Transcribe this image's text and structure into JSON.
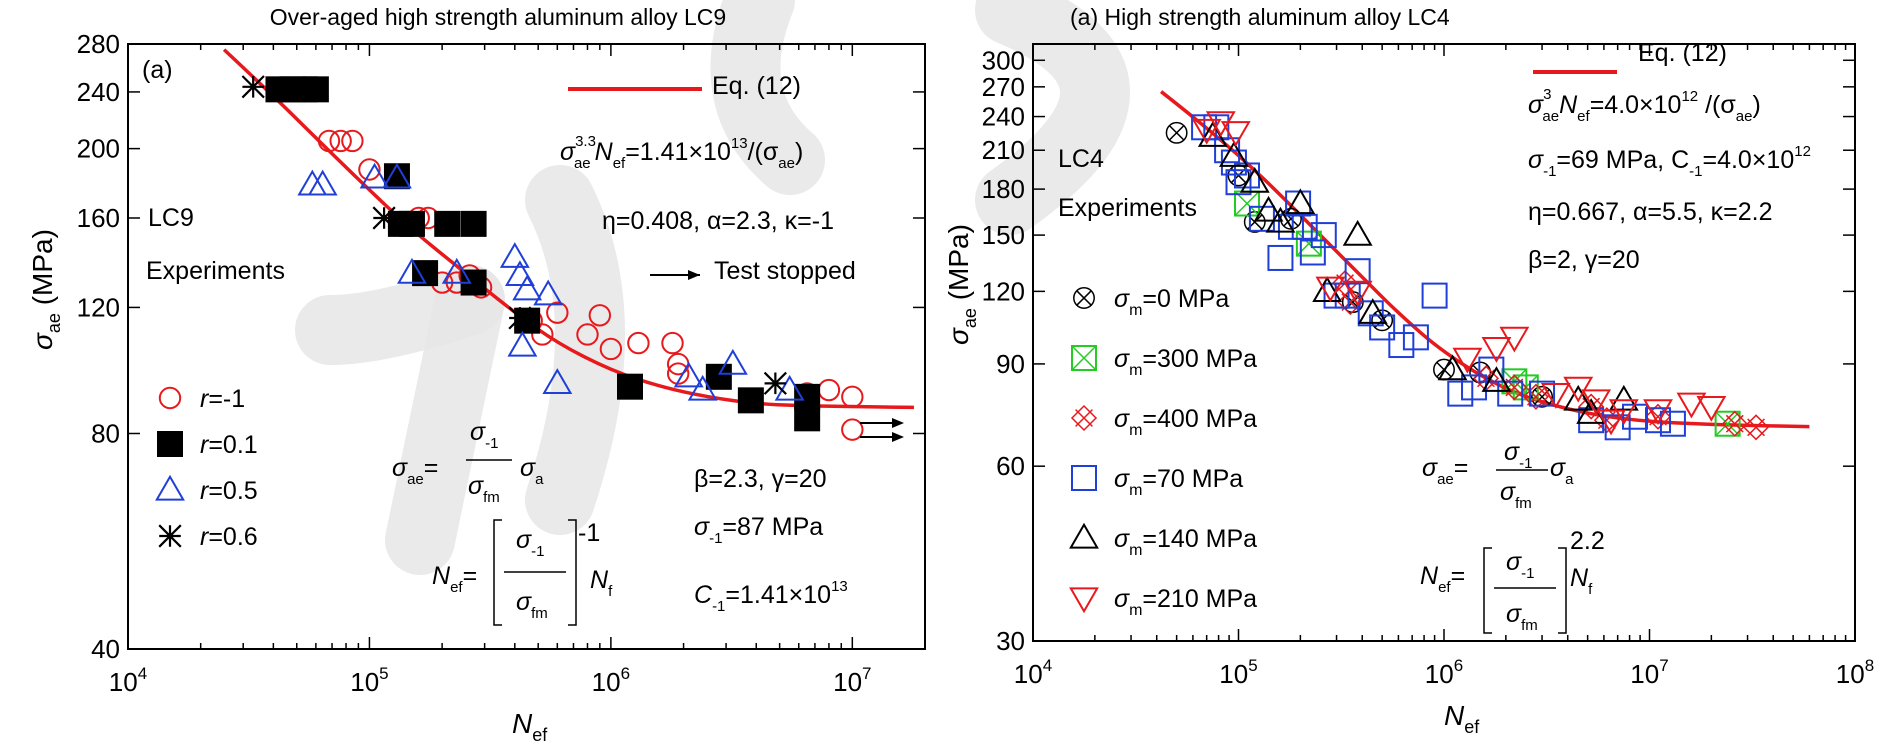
{
  "chart_data": [
    {
      "type": "scatter",
      "title": "Over-aged high strength aluminum alloy LC9",
      "panel_label": "(a)",
      "xlabel": "N_ef",
      "ylabel": "σ_ae (MPa)",
      "xscale": "log",
      "yscale": "log",
      "xlim": [
        10000,
        20000000
      ],
      "ylim": [
        40,
        280
      ],
      "xticks": [
        10000,
        100000,
        1000000,
        10000000
      ],
      "yticks": [
        40,
        80,
        120,
        160,
        200,
        240,
        280
      ],
      "material_label": "LC9",
      "experiments_label": "Experiments",
      "colors": {
        "fit": "#e8191c",
        "r_-1": "#e8191c",
        "r_0.1": "#000000",
        "r_0.5": "#1f3fd8",
        "r_0.6": "#000000"
      },
      "fit": {
        "name": "Eq. (12)",
        "x": [
          25000,
          40000,
          60000,
          100000,
          150000,
          250000,
          400000,
          600000,
          1000000,
          1600000,
          2500000,
          4000000,
          6000000,
          10000000,
          18000000
        ],
        "y": [
          275,
          237,
          207,
          175,
          154,
          134,
          118,
          107,
          98,
          93,
          90,
          88,
          87.5,
          87.2,
          87
        ]
      },
      "series": [
        {
          "name": "r=-1",
          "label_var": "r",
          "label_val": "=-1",
          "marker": "circle",
          "points": [
            [
              68000,
              205
            ],
            [
              76000,
              205
            ],
            [
              85000,
              205
            ],
            [
              100000,
              187
            ],
            [
              160000,
              160
            ],
            [
              175000,
              160
            ],
            [
              200000,
              130
            ],
            [
              230000,
              130
            ],
            [
              260000,
              133
            ],
            [
              290000,
              128
            ],
            [
              470000,
              115
            ],
            [
              520000,
              110
            ],
            [
              600000,
              118
            ],
            [
              800000,
              110
            ],
            [
              900000,
              117
            ],
            [
              1000000,
              105
            ],
            [
              1300000,
              107
            ],
            [
              1800000,
              107
            ],
            [
              1900000,
              97
            ],
            [
              1900000,
              100
            ],
            [
              6500000,
              91
            ],
            [
              6500000,
              87
            ],
            [
              8000000,
              92
            ],
            [
              10000000,
              90
            ],
            [
              10000000,
              81
            ]
          ]
        },
        {
          "name": "r=0.1",
          "label_var": "r",
          "label_val": "=0.1",
          "marker": "square",
          "points": [
            [
              42000,
              242
            ],
            [
              48000,
              242
            ],
            [
              54000,
              242
            ],
            [
              60000,
              242
            ],
            [
              130000,
              183
            ],
            [
              135000,
              157
            ],
            [
              150000,
              157
            ],
            [
              170000,
              134
            ],
            [
              210000,
              157
            ],
            [
              270000,
              157
            ],
            [
              270000,
              130
            ],
            [
              450000,
              115
            ],
            [
              1200000,
              93
            ],
            [
              2800000,
              96
            ],
            [
              3800000,
              89
            ],
            [
              6500000,
              84
            ],
            [
              6500000,
              90
            ]
          ]
        },
        {
          "name": "r=0.5",
          "label_var": "r",
          "label_val": "=0.5",
          "marker": "triangle",
          "points": [
            [
              58000,
              178
            ],
            [
              64000,
              178
            ],
            [
              105000,
              182
            ],
            [
              130000,
              182
            ],
            [
              150000,
              134
            ],
            [
              230000,
              134
            ],
            [
              400000,
              141
            ],
            [
              420000,
              133
            ],
            [
              430000,
              106
            ],
            [
              450000,
              127
            ],
            [
              550000,
              125
            ],
            [
              600000,
              94
            ],
            [
              2100000,
              96
            ],
            [
              2400000,
              92
            ],
            [
              3200000,
              100
            ],
            [
              5500000,
              92
            ]
          ]
        },
        {
          "name": "r=0.6",
          "label_var": "r",
          "label_val": "=0.6",
          "marker": "asterisk",
          "points": [
            [
              33000,
              244
            ],
            [
              115000,
              160
            ],
            [
              420000,
              116
            ],
            [
              4800000,
              94
            ]
          ]
        }
      ],
      "annotations": {
        "eq_main_lhs": "σ",
        "eq_main_sup": "3.3",
        "eq_main_sub": "ae",
        "eq_main_n": "N",
        "eq_main_nsub": "ef",
        "eq_main_rhs": "=1.41×10",
        "eq_main_rhs_exp": "13",
        "eq_main_tail": "/(σ",
        "eq_main_tail_sub": "ae",
        "eq_main_close": ")",
        "params1": "η=0.408, α=2.3, κ=-1",
        "test_stopped": "Test stopped",
        "params2": "β=2.3, γ=20",
        "sigma_m1": "σ",
        "sigma_m1_sub": "-1",
        "sigma_m1_val": "=87 MPa",
        "c_m1": "C",
        "c_m1_sub": "-1",
        "c_m1_val": "=1.41×10",
        "c_m1_exp": "13",
        "f_sae": "σ",
        "f_sae_sub": "ae",
        "f_eq": "=",
        "f_num": "σ",
        "f_num_sub": "-1",
        "f_den": "σ",
        "f_den_sub": "fm",
        "f_a": "σ",
        "f_a_sub": "a",
        "f_nef": "N",
        "f_nef_sub": "ef",
        "f_exp": "-1",
        "f_nf": "N",
        "f_nf_sub": "f"
      }
    },
    {
      "type": "scatter",
      "title": "High strength aluminum alloy LC4",
      "panel_label": "(a)",
      "xlabel": "N_ef",
      "ylabel": "σ_ae (MPa)",
      "xscale": "log",
      "yscale": "log",
      "xlim": [
        10000,
        100000000
      ],
      "ylim": [
        30,
        320
      ],
      "xticks": [
        10000,
        100000,
        1000000,
        10000000,
        100000000
      ],
      "yticks": [
        30,
        60,
        90,
        120,
        150,
        180,
        210,
        240,
        270,
        300
      ],
      "material_label": "LC4",
      "experiments_label": "Experiments",
      "colors": {
        "fit": "#e8191c",
        "sm0": "#000000",
        "sm300": "#22cc22",
        "sm400": "#e8191c",
        "sm70": "#1f3fd8",
        "sm140": "#000000",
        "sm210": "#e8191c"
      },
      "fit": {
        "name": "Eq. (12)",
        "x": [
          42000,
          60000,
          100000,
          150000,
          250000,
          400000,
          600000,
          1000000,
          2000000,
          4000000,
          8000000,
          16000000,
          30000000,
          60000000
        ],
        "y": [
          265,
          240,
          206,
          180,
          150,
          127,
          110,
          94,
          81,
          75,
          72,
          71,
          70.5,
          70.2
        ]
      },
      "series": [
        {
          "name": "σm=0 MPa",
          "label_var": "σ",
          "label_sub": "m",
          "label_val": "=0 MPa",
          "marker": "circle-x",
          "points": [
            [
              50000,
              225
            ],
            [
              100000,
              190
            ],
            [
              120000,
              158
            ],
            [
              180000,
              160
            ],
            [
              360000,
              115
            ],
            [
              500000,
              107
            ],
            [
              1000000,
              88
            ],
            [
              1500000,
              87
            ],
            [
              3000000,
              79
            ]
          ]
        },
        {
          "name": "σm=300 MPa",
          "label_var": "σ",
          "label_sub": "m",
          "label_val": "=300 MPa",
          "marker": "square-x",
          "points": [
            [
              110000,
              170
            ],
            [
              220000,
              145
            ],
            [
              2200000,
              84
            ],
            [
              2500000,
              82
            ],
            [
              24000000,
              71
            ]
          ]
        },
        {
          "name": "σm=400 MPa",
          "label_var": "σ",
          "label_sub": "m",
          "label_val": "=400 MPa",
          "marker": "diamond-x",
          "points": [
            [
              330000,
              124
            ],
            [
              350000,
              115
            ],
            [
              1600000,
              85
            ],
            [
              2200000,
              82
            ],
            [
              2800000,
              79
            ],
            [
              5200000,
              76
            ],
            [
              6200000,
              72
            ],
            [
              11000000,
              73
            ],
            [
              26000000,
              71
            ],
            [
              33000000,
              70
            ]
          ]
        },
        {
          "name": "σm=70 MPa",
          "label_var": "σ",
          "label_sub": "m",
          "label_val": "=70 MPa",
          "marker": "square",
          "points": [
            [
              68000,
              230
            ],
            [
              78000,
              230
            ],
            [
              88000,
              210
            ],
            [
              95000,
              200
            ],
            [
              100000,
              185
            ],
            [
              110000,
              190
            ],
            [
              130000,
              160
            ],
            [
              160000,
              137
            ],
            [
              180000,
              155
            ],
            [
              195000,
              170
            ],
            [
              210000,
              155
            ],
            [
              230000,
              140
            ],
            [
              260000,
              150
            ],
            [
              300000,
              118
            ],
            [
              340000,
              118
            ],
            [
              380000,
              130
            ],
            [
              440000,
              110
            ],
            [
              500000,
              104
            ],
            [
              620000,
              97
            ],
            [
              730000,
              100
            ],
            [
              900000,
              118
            ],
            [
              1200000,
              80
            ],
            [
              1400000,
              82
            ],
            [
              1700000,
              88
            ],
            [
              2100000,
              80
            ],
            [
              3000000,
              80
            ],
            [
              5200000,
              72
            ],
            [
              7000000,
              70
            ],
            [
              8500000,
              73
            ],
            [
              11000000,
              72
            ],
            [
              13000000,
              71
            ]
          ]
        },
        {
          "name": "σm=140 MPa",
          "label_var": "σ",
          "label_sub": "m",
          "label_val": "=140 MPa",
          "marker": "triangle",
          "points": [
            [
              75000,
              222
            ],
            [
              95000,
              205
            ],
            [
              120000,
              185
            ],
            [
              140000,
              165
            ],
            [
              160000,
              158
            ],
            [
              200000,
              170
            ],
            [
              270000,
              120
            ],
            [
              380000,
              150
            ],
            [
              450000,
              110
            ],
            [
              1100000,
              88
            ],
            [
              1800000,
              84
            ],
            [
              4500000,
              78
            ],
            [
              5200000,
              74
            ],
            [
              7500000,
              78
            ]
          ]
        },
        {
          "name": "σm=210 MPa",
          "label_var": "σ",
          "label_sub": "m",
          "label_val": "=210 MPa",
          "marker": "triangle-down",
          "points": [
            [
              70000,
              228
            ],
            [
              82000,
              235
            ],
            [
              97000,
              226
            ],
            [
              280000,
              122
            ],
            [
              380000,
              120
            ],
            [
              1300000,
              92
            ],
            [
              1800000,
              96
            ],
            [
              2200000,
              100
            ],
            [
              3500000,
              80
            ],
            [
              4500000,
              82
            ],
            [
              5500000,
              78
            ],
            [
              6500000,
              72
            ],
            [
              7500000,
              75
            ],
            [
              11000000,
              75
            ],
            [
              16000000,
              77
            ],
            [
              20000000,
              76
            ]
          ]
        }
      ],
      "annotations": {
        "eq_main_lhs": "σ",
        "eq_main_sup": "3",
        "eq_main_sub": "ae",
        "eq_main_n": "N",
        "eq_main_nsub": "ef",
        "eq_main_rhs": "=4.0×10",
        "eq_main_rhs_exp": "12",
        "eq_main_tail": " /(σ",
        "eq_main_tail_sub": "ae",
        "eq_main_close": ")",
        "params0_lhs": "σ",
        "params0_sub": "-1",
        "params0_mid": "=69 MPa, C",
        "params0_sub2": "-1",
        "params0_val": "=4.0×10",
        "params0_exp": "12",
        "params1": "η=0.667, α=5.5, κ=2.2",
        "params2": "β=2, γ=20",
        "f_sae": "σ",
        "f_sae_sub": "ae",
        "f_eq": "=",
        "f_num": "σ",
        "f_num_sub": "-1",
        "f_den": "σ",
        "f_den_sub": "fm",
        "f_a": "σ",
        "f_a_sub": "a",
        "f_nef": "N",
        "f_nef_sub": "ef",
        "f_exp": "2.2",
        "f_nf": "N",
        "f_nf_sub": "f"
      }
    }
  ]
}
